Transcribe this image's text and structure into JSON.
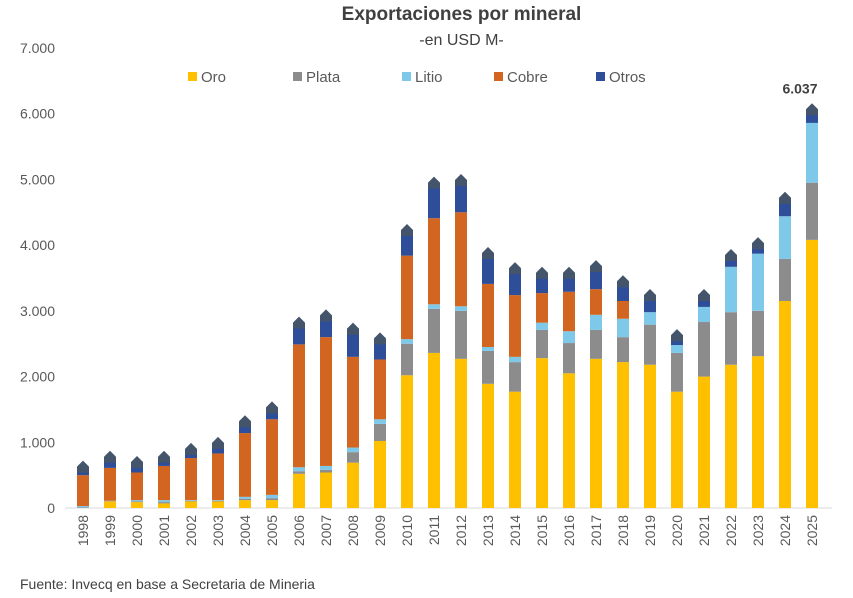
{
  "chart_data": {
    "type": "bar",
    "stacked": true,
    "title": "Exportaciones por mineral",
    "subtitle": "-en USD M-",
    "source": "Fuente: Invecq en base a Secretaria de Mineria",
    "xlabel": "",
    "ylabel": "",
    "ylim": [
      0,
      7000
    ],
    "yticks": [
      "0",
      "1.000",
      "2.000",
      "3.000",
      "4.000",
      "5.000",
      "6.000",
      "7.000"
    ],
    "grid": false,
    "legend": "top",
    "categories": [
      "1998",
      "1999",
      "2000",
      "2001",
      "2002",
      "2003",
      "2004",
      "2005",
      "2006",
      "2007",
      "2008",
      "2009",
      "2010",
      "2011",
      "2012",
      "2013",
      "2014",
      "2015",
      "2016",
      "2017",
      "2018",
      "2019",
      "2020",
      "2021",
      "2022",
      "2023",
      "2024",
      "2025"
    ],
    "series": [
      {
        "name": "Oro",
        "color": "#FFC000",
        "values": [
          0,
          100,
          90,
          70,
          100,
          100,
          120,
          120,
          520,
          540,
          690,
          1020,
          2020,
          2360,
          2270,
          1890,
          1770,
          2280,
          2050,
          2270,
          2220,
          2180,
          1770,
          2000,
          2180,
          2310,
          3150,
          4080
        ]
      },
      {
        "name": "Plata",
        "color": "#8C8C8C",
        "values": [
          10,
          5,
          10,
          20,
          10,
          10,
          20,
          30,
          40,
          40,
          160,
          260,
          480,
          670,
          730,
          500,
          450,
          430,
          460,
          440,
          380,
          610,
          590,
          830,
          800,
          690,
          640,
          870
        ]
      },
      {
        "name": "Litio",
        "color": "#7EC8EA",
        "values": [
          20,
          5,
          20,
          30,
          10,
          10,
          30,
          50,
          60,
          60,
          70,
          70,
          70,
          70,
          70,
          60,
          80,
          110,
          180,
          230,
          280,
          190,
          120,
          230,
          690,
          870,
          650,
          910
        ]
      },
      {
        "name": "Cobre",
        "color": "#D2651F",
        "values": [
          470,
          500,
          420,
          520,
          640,
          710,
          970,
          1150,
          1870,
          1960,
          1380,
          910,
          1270,
          1310,
          1430,
          960,
          940,
          450,
          600,
          390,
          270,
          0,
          0,
          0,
          0,
          0,
          0,
          0
        ]
      },
      {
        "name": "Otros",
        "color": "#2E4E9A",
        "values": [
          100,
          140,
          130,
          110,
          110,
          130,
          150,
          150,
          300,
          300,
          400,
          290,
          360,
          510,
          460,
          440,
          380,
          280,
          260,
          320,
          270,
          230,
          120,
          150,
          150,
          130,
          250,
          177
        ]
      }
    ],
    "total_marker_color": "#44546A",
    "annotations": [
      {
        "category": "2025",
        "label": "6.037"
      }
    ]
  }
}
